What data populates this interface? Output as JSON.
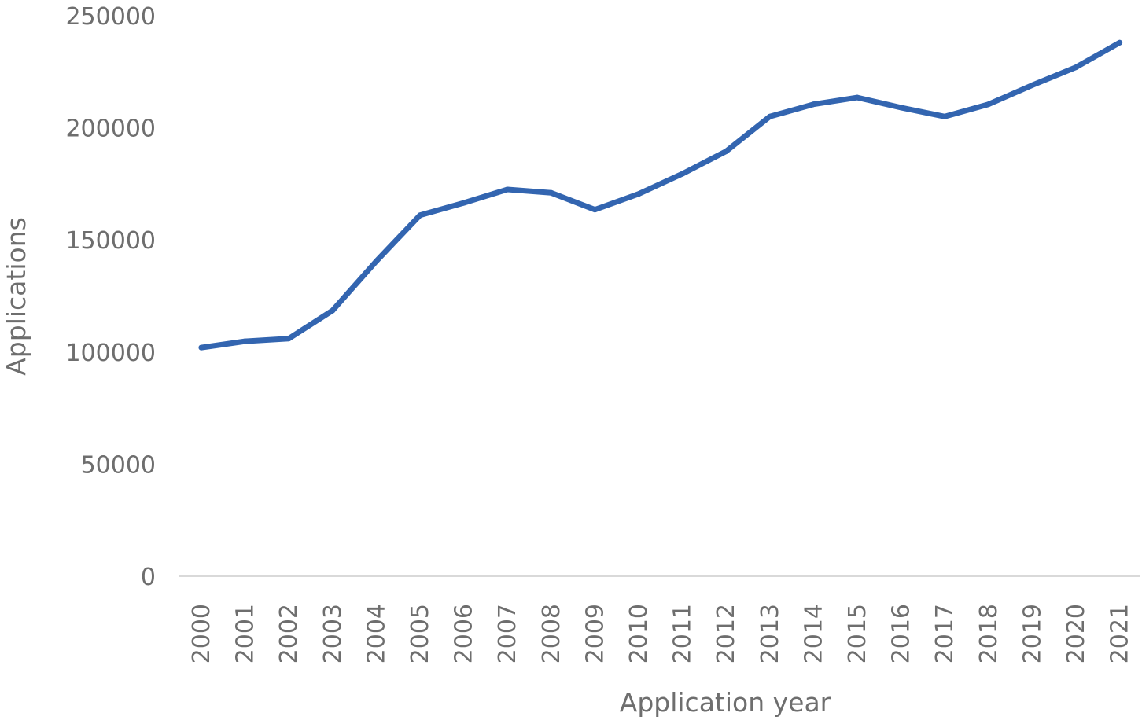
{
  "chart_data": {
    "type": "line",
    "title": "",
    "xlabel": "Application year",
    "ylabel": "Applications",
    "categories": [
      "2000",
      "2001",
      "2002",
      "2003",
      "2004",
      "2005",
      "2006",
      "2007",
      "2008",
      "2009",
      "2010",
      "2011",
      "2012",
      "2013",
      "2014",
      "2015",
      "2016",
      "2017",
      "2018",
      "2019",
      "2020",
      "2021"
    ],
    "series": [
      {
        "values": [
          102000,
          104800,
          106000,
          118500,
          140500,
          161000,
          166500,
          172500,
          171000,
          163500,
          170500,
          179500,
          189500,
          205000,
          210500,
          213500,
          209000,
          205000,
          210500,
          219000,
          227000,
          238000
        ],
        "color": "#3365b0"
      }
    ],
    "ylim": [
      0,
      250000
    ],
    "yticks": [
      "0",
      "50000",
      "100000",
      "150000",
      "200000",
      "250000"
    ],
    "grid": false,
    "legend": "none"
  }
}
